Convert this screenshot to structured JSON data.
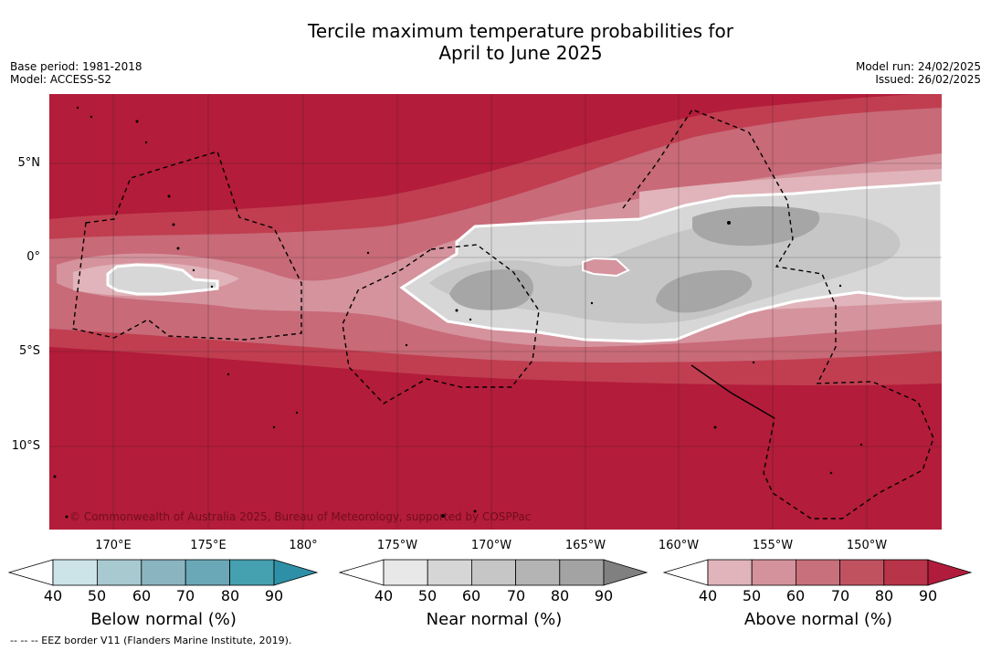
{
  "title_line1": "Tercile maximum temperature probabilities for",
  "title_line2": "April to June 2025",
  "meta_left": [
    "Base period: 1981-2018",
    "Model: ACCESS-S2"
  ],
  "meta_right": [
    "Model run: 24/02/2025",
    "Issued: 26/02/2025"
  ],
  "lat_labels": [
    "5°N",
    "0°",
    "5°S",
    "10°S"
  ],
  "lon_labels": [
    "170°E",
    "175°E",
    "180°",
    "175°W",
    "170°W",
    "165°W",
    "160°W",
    "155°W",
    "150°W"
  ],
  "copyright": "© Commonwealth of Australia 2025, Bureau of Meteorology, supported by COSPPac",
  "colorbars": [
    {
      "title": "Below normal (%)",
      "ticks": [
        "40",
        "50",
        "60",
        "70",
        "80",
        "90"
      ],
      "colors": [
        "#cce3e8",
        "#a8c9d0",
        "#8ab5c0",
        "#6aa8b8",
        "#45a0b0",
        "#2e90a6"
      ]
    },
    {
      "title": "Near normal (%)",
      "ticks": [
        "40",
        "50",
        "60",
        "70",
        "80",
        "90"
      ],
      "colors": [
        "#e8e8e8",
        "#d6d6d6",
        "#c6c6c6",
        "#b4b4b4",
        "#a3a3a3",
        "#808080"
      ]
    },
    {
      "title": "Above normal (%)",
      "ticks": [
        "40",
        "50",
        "60",
        "70",
        "80",
        "90"
      ],
      "colors": [
        "#e0b4ba",
        "#d4939c",
        "#c8707c",
        "#c05260",
        "#b83448",
        "#b11c3c"
      ]
    }
  ],
  "footnote": "-- -- -- EEZ border V11 (Flanders Marine Institute, 2019).",
  "colors": {
    "sea_red": "#b41d3a",
    "boundary": "#000000",
    "contour": "#ffffff"
  }
}
